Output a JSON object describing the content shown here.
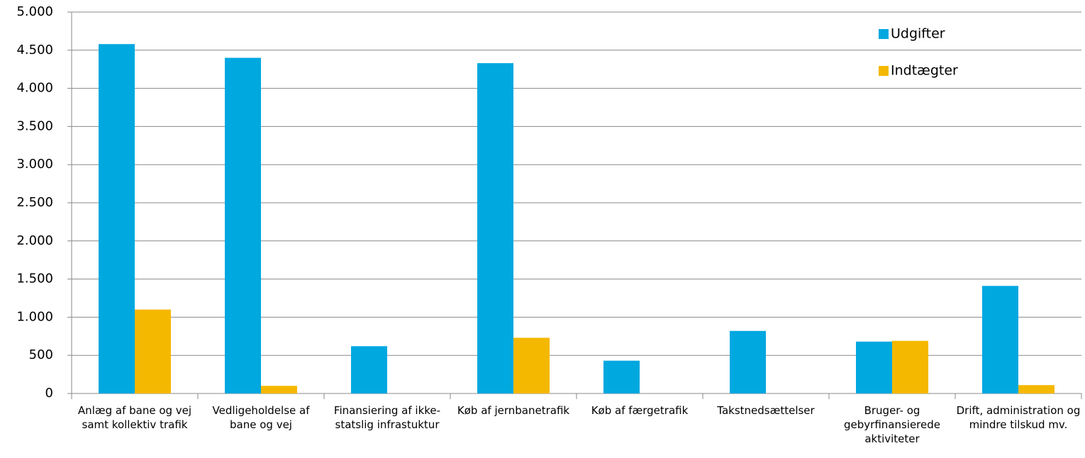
{
  "chart_data": {
    "type": "bar",
    "categories": [
      "Anlæg af bane og vej samt kollektiv trafik",
      "Vedligeholdelse af bane og vej",
      "Finansiering af ikke-statslig infrastuktur",
      "Køb af jernbanetrafik",
      "Køb af færgetrafik",
      "Takstnedsættelser",
      "Bruger- og gebyrfinansierede aktiviteter",
      "Drift, administration og mindre tilskud mv."
    ],
    "series": [
      {
        "name": "Udgifter",
        "color": "#00a8e0",
        "values": [
          4580,
          4400,
          620,
          4330,
          430,
          820,
          680,
          1410
        ]
      },
      {
        "name": "Indtægter",
        "color": "#f5b800",
        "values": [
          1100,
          100,
          0,
          730,
          0,
          0,
          690,
          110
        ]
      }
    ],
    "ylim": [
      0,
      5000
    ],
    "yticks": [
      0,
      {
        "value": 500,
        "label": "500"
      },
      {
        "value": 1000,
        "label": "1.000"
      },
      {
        "value": 1500,
        "label": "1.500"
      },
      {
        "value": 2000,
        "label": "2.000"
      },
      {
        "value": 2500,
        "label": "2.500"
      },
      {
        "value": 3000,
        "label": "3.000"
      },
      {
        "value": 3500,
        "label": "3.500"
      },
      {
        "value": 4000,
        "label": "4.000"
      },
      {
        "value": 4500,
        "label": "4.500"
      },
      {
        "value": 5000,
        "label": "5.000"
      }
    ],
    "grid": true,
    "legend": "top-right"
  }
}
